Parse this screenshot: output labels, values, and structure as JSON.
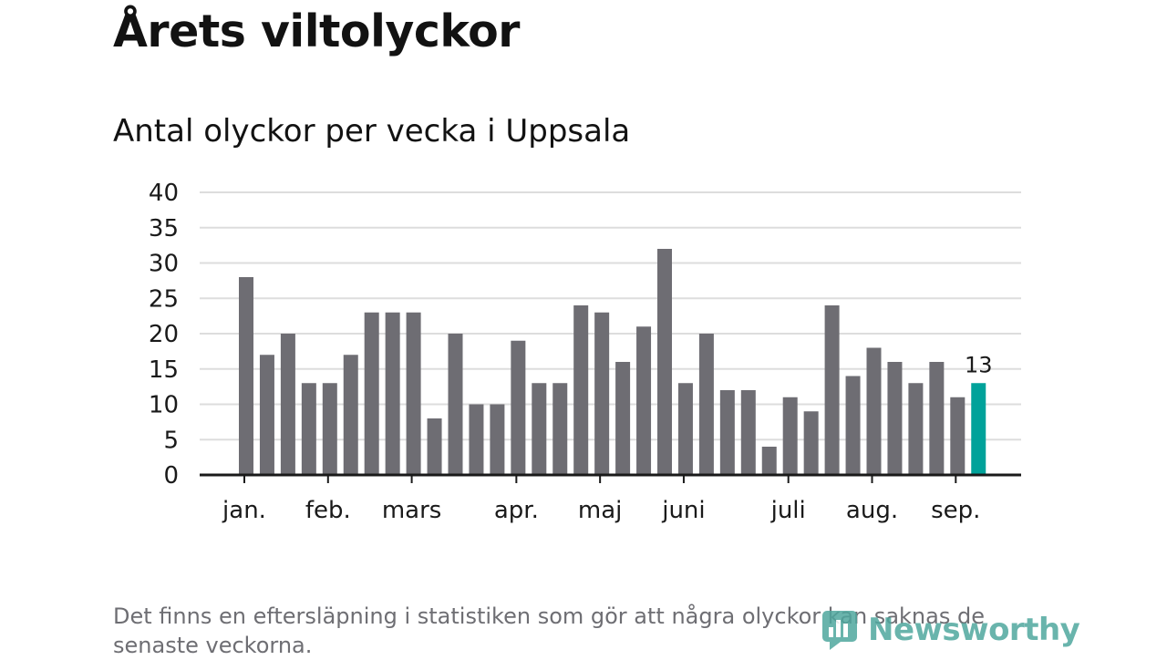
{
  "title": "Årets viltolyckor",
  "subtitle": "Antal olyckor per vecka i Uppsala",
  "footnote": "Det finns en eftersläpning i statistiken som gör att några olyckor kan saknas de senaste veckorna.",
  "logo": {
    "text": "Newsworthy",
    "icon": "newsworthy-logo-icon"
  },
  "colors": {
    "bar": "#6e6d73",
    "highlight": "#00a29a",
    "grid": "#dddddd",
    "axis": "#1a1a1a"
  },
  "chart_data": {
    "type": "bar",
    "title": "Årets viltolyckor",
    "subtitle": "Antal olyckor per vecka i Uppsala",
    "xlabel": "",
    "ylabel": "",
    "ylim": [
      0,
      40
    ],
    "yticks": [
      0,
      5,
      10,
      15,
      20,
      25,
      30,
      35,
      40
    ],
    "grid": true,
    "values": [
      28,
      17,
      20,
      13,
      13,
      17,
      23,
      23,
      23,
      8,
      20,
      10,
      10,
      19,
      13,
      13,
      24,
      23,
      16,
      21,
      32,
      13,
      20,
      12,
      12,
      4,
      11,
      9,
      24,
      14,
      18,
      16,
      13,
      16,
      11,
      13
    ],
    "highlight_index": 35,
    "highlight_label": "13",
    "month_ticks": [
      {
        "label": "jan.",
        "week": 0
      },
      {
        "label": "feb.",
        "week": 4
      },
      {
        "label": "mars",
        "week": 8
      },
      {
        "label": "apr.",
        "week": 13
      },
      {
        "label": "maj",
        "week": 17
      },
      {
        "label": "juni",
        "week": 21
      },
      {
        "label": "juli",
        "week": 26
      },
      {
        "label": "aug.",
        "week": 30
      },
      {
        "label": "sep.",
        "week": 34
      }
    ]
  }
}
